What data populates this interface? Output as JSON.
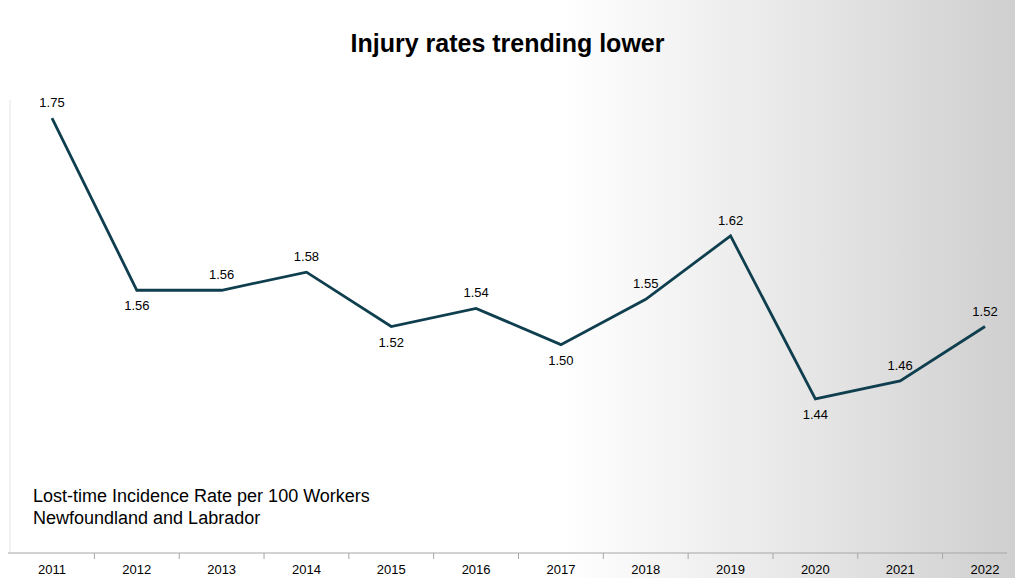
{
  "chart_data": {
    "type": "line",
    "title": "Injury rates trending lower",
    "annotations": [
      "Lost-time Incidence Rate per 100 Workers",
      "Newfoundland and Labrador"
    ],
    "categories": [
      "2011",
      "2012",
      "2013",
      "2014",
      "2015",
      "2016",
      "2017",
      "2018",
      "2019",
      "2020",
      "2021",
      "2022"
    ],
    "values": [
      1.75,
      1.56,
      1.56,
      1.58,
      1.52,
      1.54,
      1.5,
      1.55,
      1.62,
      1.44,
      1.46,
      1.52
    ],
    "color": "#0f3f4e",
    "ylim": [
      1.27,
      1.77
    ],
    "data_labels": true,
    "tick_labels": "x",
    "grid": false
  }
}
